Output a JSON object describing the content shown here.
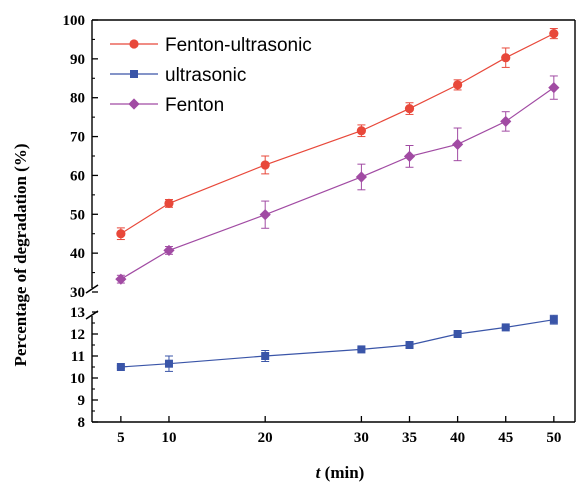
{
  "chart_data": {
    "type": "line",
    "x": [
      5,
      10,
      20,
      30,
      35,
      40,
      45,
      50
    ],
    "xlabel_italic": "t",
    "xlabel_rest": " (min)",
    "ylabel": "Percentage of degradation (%)",
    "x_tick_labels": [
      "5",
      "10",
      "20",
      "30",
      "35",
      "40",
      "45",
      "50"
    ],
    "y_upper_ticks": [
      "30",
      "40",
      "50",
      "60",
      "70",
      "80",
      "90",
      "100"
    ],
    "y_lower_ticks": [
      "8",
      "9",
      "10",
      "11",
      "12",
      "13"
    ],
    "ylim_upper": [
      30,
      100
    ],
    "ylim_lower": [
      8,
      13.5
    ],
    "axis_break": true,
    "grid": false,
    "legend_position": "top-left",
    "series": [
      {
        "name": "Fenton-ultrasonic",
        "color": "#e8483a",
        "marker": "circle",
        "segment": "upper",
        "values": [
          45.0,
          52.8,
          62.7,
          71.5,
          77.2,
          83.3,
          90.3,
          96.5
        ],
        "errors": [
          1.5,
          1.0,
          2.3,
          1.5,
          1.5,
          1.3,
          2.5,
          1.3
        ]
      },
      {
        "name": "ultrasonic",
        "color": "#3a55a8",
        "marker": "square",
        "segment": "lower",
        "values": [
          10.5,
          10.65,
          11.0,
          11.3,
          11.5,
          12.0,
          12.3,
          12.65
        ],
        "errors": [
          0.05,
          0.35,
          0.25,
          0.05,
          0.15,
          0.05,
          0.05,
          0.2
        ]
      },
      {
        "name": "Fenton",
        "color": "#a14ba3",
        "marker": "diamond",
        "segment": "upper",
        "values": [
          33.3,
          40.7,
          49.9,
          59.6,
          64.9,
          68.0,
          73.9,
          82.6
        ],
        "errors": [
          1.0,
          1.0,
          3.5,
          3.3,
          2.8,
          4.2,
          2.5,
          3.0
        ]
      }
    ]
  }
}
